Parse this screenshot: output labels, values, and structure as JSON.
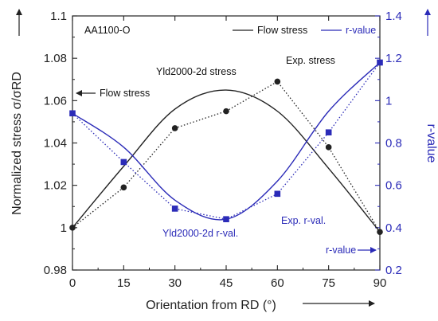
{
  "chart_data": {
    "type": "line",
    "x": [
      0,
      15,
      30,
      45,
      60,
      75,
      90
    ],
    "xlabel": "Orientation from RD (°)",
    "ylabel_left": "Normalized stress σ/σRD",
    "ylabel_right": "r-value",
    "xlim": [
      0,
      90
    ],
    "ylim_left": [
      0.98,
      1.1
    ],
    "ylim_right": [
      0.2,
      1.4
    ],
    "xticks": [
      "0",
      "15",
      "30",
      "45",
      "60",
      "75",
      "90"
    ],
    "yticks_left": [
      "0.98",
      "1",
      "1.02",
      "1.04",
      "1.06",
      "1.08",
      "1.1"
    ],
    "yticks_right": [
      "0.2",
      "0.4",
      "0.6",
      "0.8",
      "1",
      "1.2",
      "1.4"
    ],
    "material_label": "AA1100-O",
    "legend": [
      {
        "name": "Flow stress",
        "color": "#222222"
      },
      {
        "name": "r-value",
        "color": "#2b2bb8"
      }
    ],
    "annotations": {
      "flow_stress_arrow": "Flow stress",
      "rvalue_arrow": "r-value",
      "yld_stress": "Yld2000-2d stress",
      "exp_stress": "Exp. stress",
      "yld_rval": "Yld2000-2d r-val.",
      "exp_rval": "Exp. r-val."
    },
    "series": [
      {
        "name": "Exp. stress",
        "axis": "left",
        "style": "dotted-markers",
        "marker": "circle",
        "color": "#222222",
        "values": [
          1.0,
          1.019,
          1.047,
          1.055,
          1.069,
          1.038,
          0.998
        ]
      },
      {
        "name": "Yld2000-2d stress",
        "axis": "left",
        "style": "solid",
        "color": "#222222",
        "values": [
          1.0,
          1.029,
          1.056,
          1.065,
          1.055,
          1.028,
          0.998
        ]
      },
      {
        "name": "Exp. r-val.",
        "axis": "right",
        "style": "dotted-markers",
        "marker": "square",
        "color": "#2b2bb8",
        "values": [
          0.94,
          0.71,
          0.49,
          0.44,
          0.56,
          0.85,
          1.18
        ]
      },
      {
        "name": "Yld2000-2d r-val.",
        "axis": "right",
        "style": "solid",
        "color": "#2b2bb8",
        "values": [
          0.94,
          0.78,
          0.53,
          0.44,
          0.62,
          0.95,
          1.18
        ]
      }
    ]
  }
}
